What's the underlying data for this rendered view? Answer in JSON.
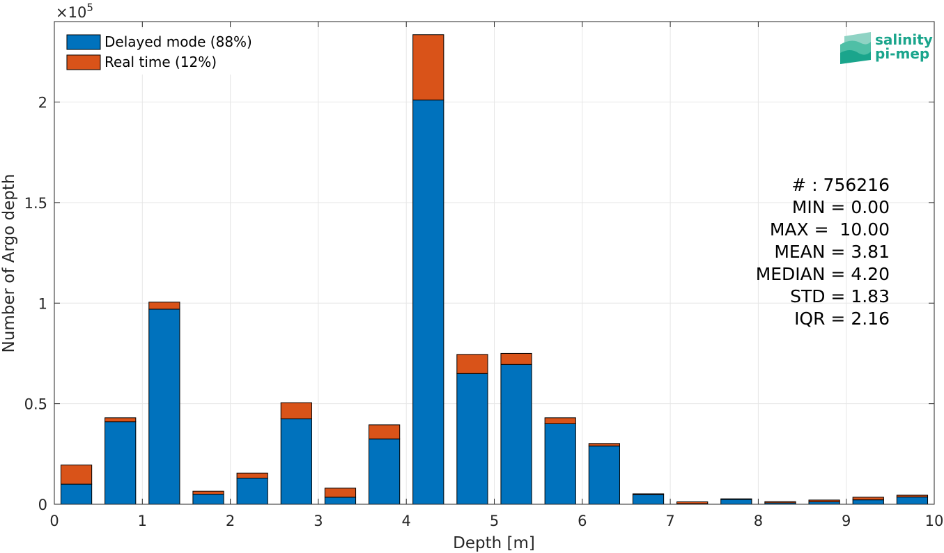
{
  "chart_data": {
    "type": "bar",
    "stacked": true,
    "xlabel": "Depth [m]",
    "ylabel": "Number of Argo depth",
    "xlim": [
      0,
      10
    ],
    "ylim": [
      0,
      240000
    ],
    "xticks": [
      "0",
      "1",
      "2",
      "3",
      "4",
      "5",
      "6",
      "7",
      "8",
      "9",
      "10"
    ],
    "yticks": [
      "0",
      "0.5",
      "1",
      "1.5",
      "2"
    ],
    "y_exponent": "×10",
    "y_exponent_power": "5",
    "grid": true,
    "legend_position": "top-left",
    "x": [
      0.25,
      0.75,
      1.25,
      1.75,
      2.25,
      2.75,
      3.25,
      3.75,
      4.25,
      4.75,
      5.25,
      5.75,
      6.25,
      6.75,
      7.25,
      7.75,
      8.25,
      8.75,
      9.25,
      9.75
    ],
    "series": [
      {
        "name": "Delayed mode (88%)",
        "color": "#0072bd",
        "values": [
          10000,
          41000,
          97000,
          5000,
          13000,
          42500,
          3500,
          32500,
          201000,
          65000,
          69500,
          40000,
          29000,
          4800,
          300,
          2400,
          700,
          1200,
          2200,
          3600
        ]
      },
      {
        "name": "Real time (12%)",
        "color": "#d95319",
        "values": [
          9500,
          2000,
          3500,
          1500,
          2500,
          8000,
          4500,
          7000,
          32500,
          9500,
          5500,
          3000,
          1200,
          400,
          900,
          300,
          600,
          900,
          1300,
          900
        ]
      }
    ],
    "stats": [
      "# : 756216",
      "MIN = 0.00",
      "MAX =  10.00",
      "MEAN = 3.81",
      "MEDIAN = 4.20",
      "STD = 1.83",
      "IQR = 2.16"
    ],
    "logo": {
      "line1": "salinity",
      "line2": "pi-mep",
      "color": "#1aa58c"
    }
  }
}
